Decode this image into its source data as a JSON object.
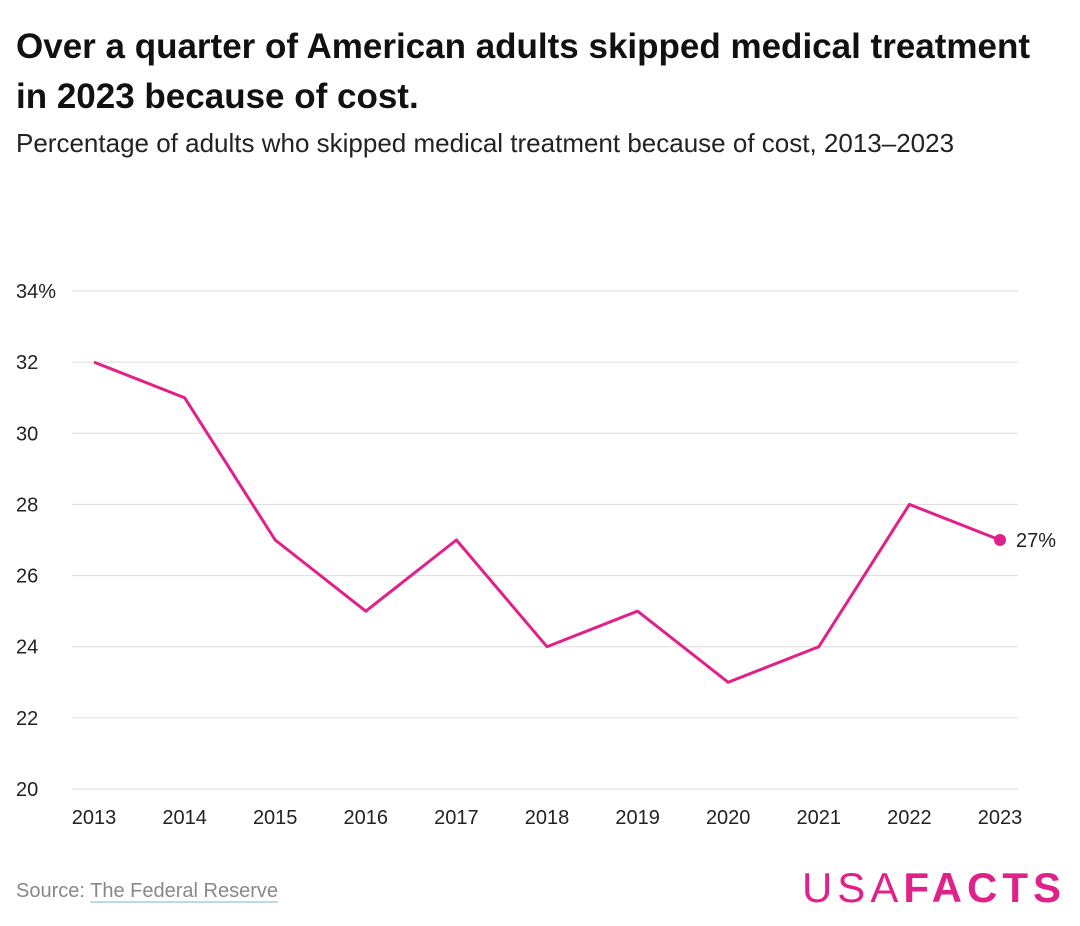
{
  "title": "Over a quarter of American adults skipped medical treatment in 2023 because of cost.",
  "subtitle": "Percentage of adults who skipped medical treatment because of cost, 2013–2023",
  "source": {
    "prefix": "Source: ",
    "link_text": "The Federal Reserve"
  },
  "logo": {
    "light": "USA",
    "bold": "FACTS"
  },
  "colors": {
    "line": "#e0218a",
    "grid": "#dcdcdc",
    "text": "#222222",
    "muted": "#888888"
  },
  "chart_data": {
    "type": "line",
    "title": "Over a quarter of American adults skipped medical treatment in 2023 because of cost.",
    "subtitle": "Percentage of adults who skipped medical treatment because of cost, 2013–2023",
    "xlabel": "",
    "ylabel": "",
    "x": [
      "2013",
      "2014",
      "2015",
      "2016",
      "2017",
      "2018",
      "2019",
      "2020",
      "2021",
      "2022",
      "2023"
    ],
    "series": [
      {
        "values": [
          32,
          31,
          27,
          25,
          27,
          24,
          25,
          23,
          24,
          28,
          27
        ]
      }
    ],
    "ylim": [
      20,
      34
    ],
    "yticks": [
      "20",
      "22",
      "24",
      "26",
      "28",
      "30",
      "32",
      "34%"
    ],
    "grid": true,
    "end_label": "27%"
  }
}
